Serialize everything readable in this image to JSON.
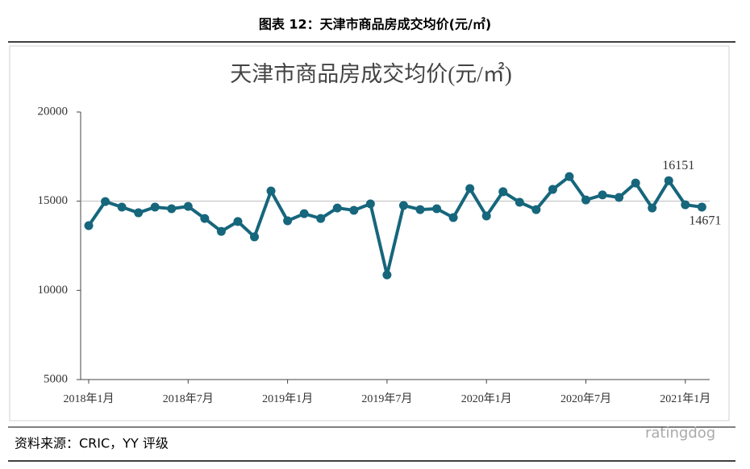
{
  "header": {
    "title": "图表 12：天津市商品房成交均价(元/㎡)"
  },
  "chart_data": {
    "type": "line",
    "title": "天津市商品房成交均价(元/㎡)",
    "categories": [
      "2018年1月",
      null,
      null,
      null,
      null,
      null,
      "2018年7月",
      null,
      null,
      null,
      null,
      null,
      "2019年1月",
      null,
      null,
      null,
      null,
      null,
      "2019年7月",
      null,
      null,
      null,
      null,
      null,
      "2020年1月",
      null,
      null,
      null,
      null,
      null,
      "2020年7月",
      null,
      null,
      null,
      null,
      null,
      "2021年1月",
      null
    ],
    "series": [
      {
        "name": "天津市商品房成交均价",
        "color": "#16667c",
        "values": [
          13630,
          14980,
          14670,
          14350,
          14670,
          14580,
          14710,
          14030,
          13310,
          13860,
          13000,
          15570,
          13900,
          14300,
          14030,
          14620,
          14490,
          14850,
          10870,
          14760,
          14530,
          14580,
          14080,
          15710,
          14170,
          15530,
          14940,
          14530,
          15660,
          16380,
          15070,
          15350,
          15210,
          16020,
          14620,
          16151,
          14800,
          14671
        ]
      }
    ],
    "data_labels_at": [
      35,
      37
    ],
    "ylim": [
      5000,
      20000
    ],
    "yticks": [
      5000,
      10000,
      15000,
      20000
    ],
    "reference_line": 15000
  },
  "footer": {
    "source": "资料来源：CRIC，YY 评级",
    "watermark": "ratingdog"
  }
}
